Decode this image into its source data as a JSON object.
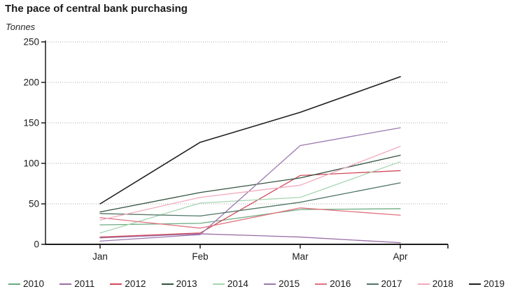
{
  "header": {
    "title": "The pace of central bank purchasing",
    "unit_label": "Tonnes"
  },
  "chart_data": {
    "type": "line",
    "title": "The pace of central bank purchasing",
    "ylabel": "Tonnes",
    "categories": [
      "Jan",
      "Feb",
      "Mar",
      "Apr"
    ],
    "ylim": [
      0,
      250
    ],
    "yticks": [
      0,
      50,
      100,
      150,
      200,
      250
    ],
    "grid": "horizontal-dotted",
    "legend_position": "bottom",
    "series": [
      {
        "name": "2010",
        "color": "#6aaa7f",
        "values": [
          24,
          26,
          43,
          44
        ]
      },
      {
        "name": "2011",
        "color": "#9b6da6",
        "values": [
          8,
          13,
          9,
          2
        ]
      },
      {
        "name": "2012",
        "color": "#d04a5a",
        "values": [
          9,
          14,
          85,
          91
        ]
      },
      {
        "name": "2013",
        "color": "#31523f",
        "values": [
          40,
          64,
          82,
          110
        ]
      },
      {
        "name": "2014",
        "color": "#a5d6b2",
        "values": [
          14,
          51,
          58,
          102
        ]
      },
      {
        "name": "2015",
        "color": "#9a77ae",
        "values": [
          4,
          12,
          122,
          144
        ]
      },
      {
        "name": "2016",
        "color": "#e2717f",
        "values": [
          33,
          20,
          45,
          36
        ]
      },
      {
        "name": "2017",
        "color": "#4f7465",
        "values": [
          38,
          35,
          52,
          76
        ]
      },
      {
        "name": "2018",
        "color": "#f2a9bc",
        "values": [
          30,
          58,
          73,
          121
        ]
      },
      {
        "name": "2019",
        "color": "#1f1f1f",
        "values": [
          50,
          126,
          163,
          207
        ]
      }
    ]
  },
  "layout": {
    "axis_color": "#1a1a1a",
    "grid_color": "#ababab",
    "tick_label_color": "#1a1a1a"
  }
}
